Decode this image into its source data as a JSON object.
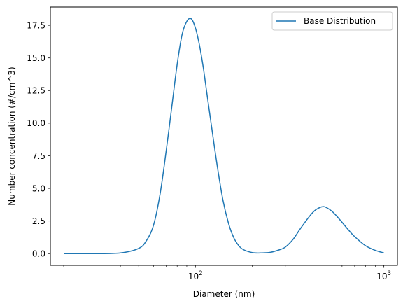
{
  "chart_data": {
    "type": "line",
    "xlabel": "Diameter (nm)",
    "ylabel": "Number concentration (#/cm^3)",
    "x_scale": "log",
    "xlim": [
      17,
      1180
    ],
    "ylim": [
      -0.9,
      18.9
    ],
    "x_major_ticks": [
      {
        "value": 100,
        "base": "10",
        "exp": "2"
      },
      {
        "value": 1000,
        "base": "10",
        "exp": "3"
      }
    ],
    "x_minor_ticks": [
      20,
      30,
      40,
      50,
      60,
      70,
      80,
      90,
      200,
      300,
      400,
      500,
      600,
      700,
      800,
      900
    ],
    "y_ticks": [
      {
        "value": 0.0,
        "label": "0.0"
      },
      {
        "value": 2.5,
        "label": "2.5"
      },
      {
        "value": 5.0,
        "label": "5.0"
      },
      {
        "value": 7.5,
        "label": "7.5"
      },
      {
        "value": 10.0,
        "label": "10.0"
      },
      {
        "value": 12.5,
        "label": "12.5"
      },
      {
        "value": 15.0,
        "label": "15.0"
      },
      {
        "value": 17.5,
        "label": "17.5"
      }
    ],
    "grid": false,
    "legend": {
      "position": "top-right"
    },
    "series": [
      {
        "name": "Base Distribution",
        "color": "#1f77b4",
        "x": [
          20,
          30,
          40,
          50,
          55,
          60,
          65,
          70,
          75,
          80,
          85,
          90,
          95,
          100,
          105,
          110,
          115,
          120,
          130,
          140,
          150,
          160,
          170,
          180,
          200,
          220,
          250,
          280,
          300,
          330,
          360,
          400,
          430,
          460,
          480,
          500,
          530,
          560,
          600,
          650,
          700,
          800,
          900,
          1000
        ],
        "y": [
          0.0,
          0.0,
          0.05,
          0.4,
          1.0,
          2.2,
          4.6,
          7.9,
          11.3,
          14.5,
          16.8,
          17.8,
          18.0,
          17.3,
          16.0,
          14.3,
          12.3,
          10.4,
          6.9,
          4.1,
          2.3,
          1.2,
          0.6,
          0.3,
          0.08,
          0.05,
          0.1,
          0.3,
          0.5,
          1.1,
          1.9,
          2.8,
          3.3,
          3.55,
          3.6,
          3.5,
          3.25,
          2.9,
          2.4,
          1.8,
          1.3,
          0.6,
          0.25,
          0.05
        ]
      }
    ]
  }
}
